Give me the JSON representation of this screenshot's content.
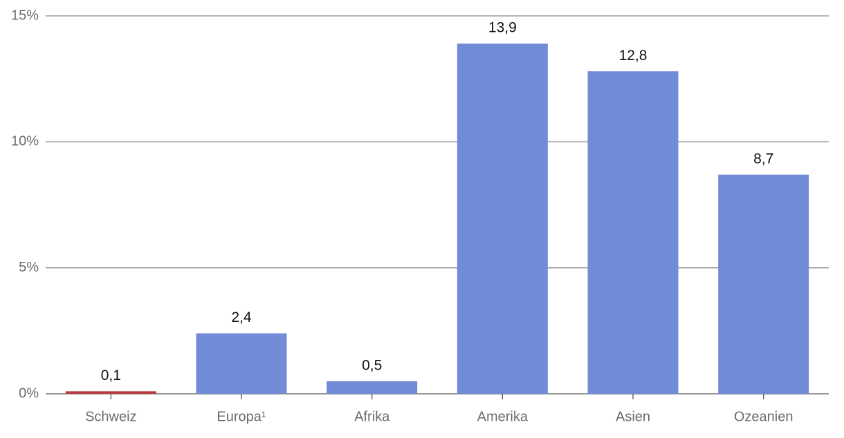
{
  "chart_data": {
    "type": "bar",
    "categories": [
      "Schweiz",
      "Europa¹",
      "Afrika",
      "Amerika",
      "Asien",
      "Ozeanien"
    ],
    "values": [
      0.1,
      2.4,
      0.5,
      13.9,
      12.8,
      8.7
    ],
    "value_labels": [
      "0,1",
      "2,4",
      "0,5",
      "13,9",
      "12,8",
      "8,7"
    ],
    "colors": [
      "#b83a3f",
      "#728bd7",
      "#728bd7",
      "#728bd7",
      "#728bd7",
      "#728bd7"
    ],
    "ylim": [
      0,
      15
    ],
    "yticks": [
      {
        "value": 0,
        "label": "0%"
      },
      {
        "value": 5,
        "label": "5%"
      },
      {
        "value": 10,
        "label": "10%"
      },
      {
        "value": 15,
        "label": "15%"
      }
    ],
    "grid": true
  }
}
